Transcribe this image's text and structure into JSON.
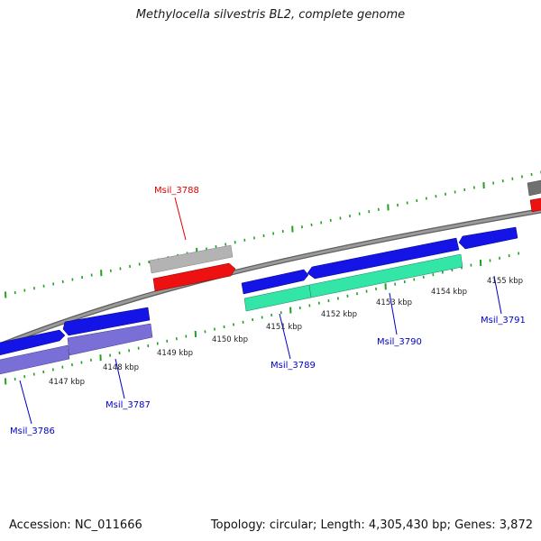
{
  "title": "Methylocella silvestris BL2, complete genome",
  "footer": {
    "accession": "Accession: NC_011666",
    "summary": "Topology: circular; Length: 4,305,430 bp; Genes: 3,872"
  },
  "colors": {
    "background": "#ffffff",
    "backbone": "#8a8a8a",
    "tick": "#22a022",
    "forward_gene": "#1414e6",
    "reverse_gene": "#7a6fd6",
    "rna_gene": "#33e6a8",
    "highlight_red": "#ee1111",
    "grey_feature": "#b3b3b3",
    "dark_grey_feature": "#707070",
    "label_blue": "#0000c8",
    "label_red": "#dd0000"
  },
  "kbp_labels": [
    "4147 kbp",
    "4148 kbp",
    "4149 kbp",
    "4150 kbp",
    "4151 kbp",
    "4152 kbp",
    "4153 kbp",
    "4154 kbp",
    "4155 kbp"
  ],
  "gene_labels": [
    {
      "name": "Msil_3786",
      "color": "blue"
    },
    {
      "name": "Msil_3787",
      "color": "blue"
    },
    {
      "name": "Msil_3788",
      "color": "red"
    },
    {
      "name": "Msil_3789",
      "color": "blue"
    },
    {
      "name": "Msil_3790",
      "color": "blue"
    },
    {
      "name": "Msil_3791",
      "color": "blue"
    }
  ]
}
